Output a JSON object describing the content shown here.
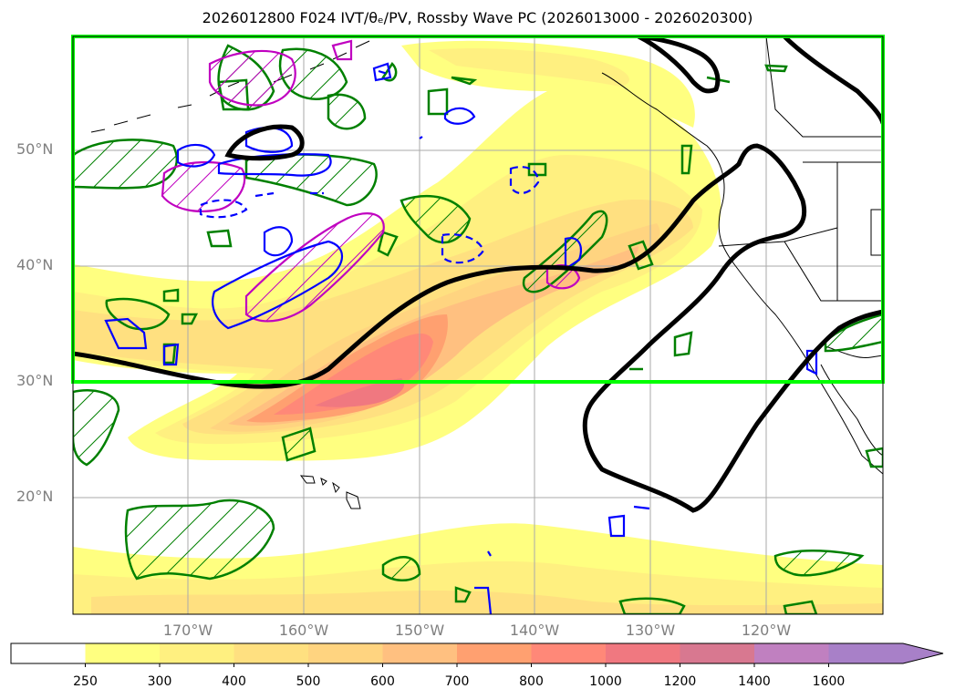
{
  "title": "2026012800 F024 IVT/θₑ/PV, Rossby Wave PC (2026013000 - 2026020300)",
  "lat_labels": [
    "50°N",
    "40°N",
    "30°N",
    "20°N"
  ],
  "lon_labels": [
    "170°W",
    "160°W",
    "150°W",
    "140°W",
    "130°W",
    "120°W"
  ],
  "colorbar": {
    "levels": [
      "250",
      "300",
      "400",
      "500",
      "600",
      "700",
      "800",
      "1000",
      "1200",
      "1400",
      "1600"
    ],
    "colors": [
      "#ffffff",
      "#ffff80",
      "#fff080",
      "#ffe080",
      "#ffd480",
      "#ffc080",
      "#ffa070",
      "#ff8878",
      "#f07880",
      "#d87890",
      "#c080c0",
      "#a880c8"
    ],
    "extend": "max"
  },
  "colors": {
    "frame_highlight": "#00ff00",
    "theta_e_contour": "#008000",
    "pv_positive": "#c000c0",
    "pv_negative": "#0000ff",
    "rossby_wave": "#000000"
  }
}
